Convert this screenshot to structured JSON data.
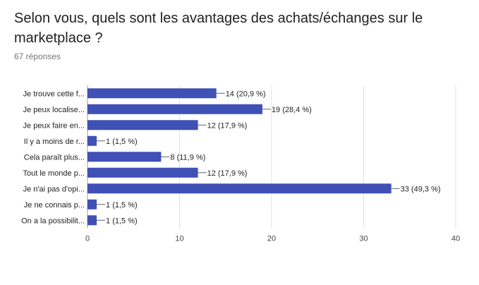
{
  "question": {
    "title": "Selon vous, quels sont les avantages des achats/échanges sur le marketplace ?",
    "responses": "67 réponses"
  },
  "colors": {
    "bar": "#3f51b5",
    "grid": "#e0e0e0",
    "axis": "#9e9e9e"
  },
  "chart_data": {
    "type": "bar",
    "orientation": "horizontal",
    "categories": [
      "Je trouve cette f...",
      "Je peux localise...",
      "Je peux faire en...",
      "Il y a moins de r...",
      "Cela paraît plus...",
      "Tout le monde p...",
      "Je n'ai pas d'opi...",
      "Je ne connais p...",
      "On a la possibilit..."
    ],
    "values": [
      14,
      19,
      12,
      1,
      8,
      12,
      33,
      1,
      1
    ],
    "data_labels": [
      "14 (20,9 %)",
      "19 (28,4 %)",
      "12 (17,9 %)",
      "1 (1,5 %)",
      "8 (11,9 %)",
      "12 (17,9 %)",
      "33 (49,3 %)",
      "1 (1,5 %)",
      "1 (1,5 %)"
    ],
    "xlim": [
      0,
      40
    ],
    "xticks": [
      0,
      10,
      20,
      30,
      40
    ],
    "grid": true,
    "legend": "none"
  }
}
